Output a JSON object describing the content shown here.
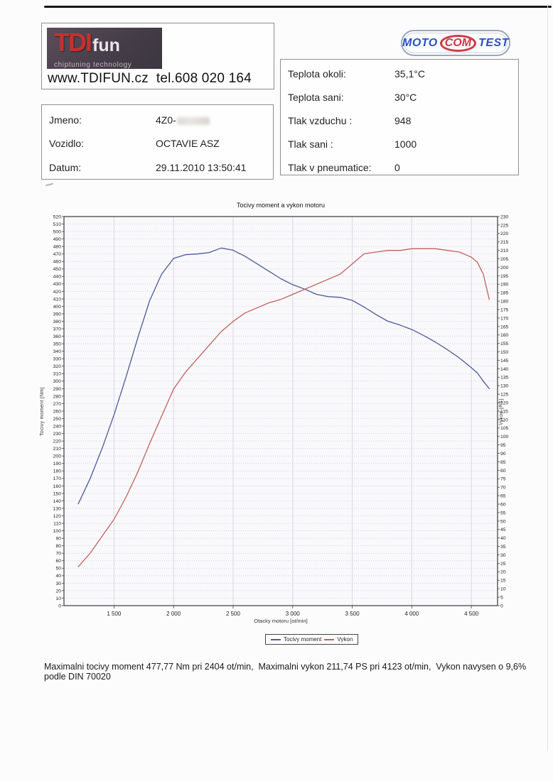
{
  "header": {
    "logo": {
      "tdi": "TDI",
      "fun": "fun",
      "tagline": "chiptuning technology"
    },
    "contact": "www.TDIFUN.cz  tel.608 020 164",
    "moto_logo": {
      "moto": "MOTO",
      "com": "COM",
      "test": "TEST"
    }
  },
  "info_left": {
    "rows": [
      {
        "label": "Jmeno:",
        "value": "4Z0-"
      },
      {
        "label": "Vozidlo:",
        "value": "OCTAVIE ASZ"
      },
      {
        "label": "Datum:",
        "value": "29.11.2010 13:50:41"
      }
    ]
  },
  "info_right": {
    "rows": [
      {
        "label": "Teplota okoli:",
        "value": "35,1°C"
      },
      {
        "label": "Teplota sani:",
        "value": "30°C"
      },
      {
        "label": "Tlak vzduchu :",
        "value": "948"
      },
      {
        "label": "Tlak sani :",
        "value": "1000"
      },
      {
        "label": "Tlak v pneumatice:",
        "value": "0"
      }
    ]
  },
  "chart_data": {
    "type": "line",
    "title": "Tocivy moment a vykon motoru",
    "xlabel": "Otacky motoru [ot/min]",
    "ylabel_left": "Tocivy moment [Nm]",
    "ylabel_right": "Vykon [PS]",
    "xlim": [
      1080,
      4720
    ],
    "ylim_left": [
      0,
      520
    ],
    "ytick_step_left": 10,
    "ylim_right": [
      0,
      230
    ],
    "ytick_step_right": 5,
    "xticks": [
      1500,
      2000,
      2500,
      3000,
      3500,
      4000,
      4500
    ],
    "xtick_labels": [
      "1 500",
      "2 000",
      "2 500",
      "3 000",
      "3 500",
      "4 000",
      "4 500"
    ],
    "grid": true,
    "legend_position": "bottom",
    "series": [
      {
        "name": "Tocivy moment",
        "axis": "left",
        "color": "#4a5a9b",
        "x": [
          1200,
          1300,
          1400,
          1500,
          1600,
          1700,
          1800,
          1900,
          2000,
          2100,
          2200,
          2300,
          2400,
          2500,
          2600,
          2700,
          2800,
          2900,
          3000,
          3100,
          3200,
          3300,
          3400,
          3500,
          3600,
          3700,
          3800,
          3900,
          4000,
          4100,
          4200,
          4300,
          4400,
          4500,
          4550,
          4600,
          4650
        ],
        "values": [
          136,
          170,
          210,
          255,
          305,
          358,
          408,
          443,
          464,
          469,
          470,
          472,
          478,
          475,
          467,
          457,
          447,
          437,
          429,
          423,
          416,
          413,
          412,
          408,
          399,
          389,
          380,
          375,
          369,
          361,
          352,
          342,
          331,
          318,
          311,
          300,
          290
        ]
      },
      {
        "name": "Vykon",
        "axis": "right",
        "color": "#c2605c",
        "x": [
          1200,
          1300,
          1400,
          1500,
          1600,
          1700,
          1800,
          1900,
          2000,
          2100,
          2200,
          2300,
          2400,
          2500,
          2600,
          2700,
          2800,
          2900,
          3000,
          3100,
          3200,
          3300,
          3400,
          3500,
          3600,
          3700,
          3800,
          3900,
          4000,
          4100,
          4200,
          4300,
          4400,
          4500,
          4550,
          4600,
          4650
        ],
        "values": [
          23,
          31,
          41,
          51,
          64,
          79,
          96,
          112,
          128,
          138,
          146,
          154,
          162,
          168,
          173,
          176,
          179,
          181,
          184,
          187,
          190,
          193,
          196,
          202,
          208,
          209,
          210,
          210,
          211,
          211,
          211,
          210,
          209,
          206,
          203,
          196,
          181
        ]
      }
    ],
    "max_torque": "477,77 Nm pri 2404 ot/min",
    "max_power": "211,74 PS pri 4123 ot/min"
  },
  "summary": "Maximalni tocivy moment 477,77 Nm pri 2404 ot/min,  Maximalni vykon 211,74 PS pri 4123 ot/min,  Vykon navysen o 9,6% podle DIN 70020"
}
